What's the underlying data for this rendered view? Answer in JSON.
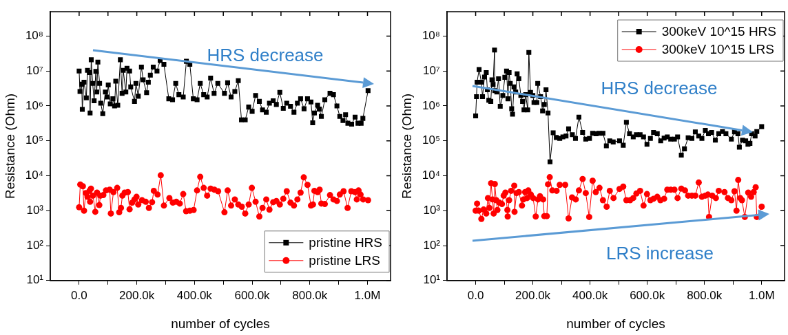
{
  "chart_data": [
    {
      "type": "line",
      "xlabel": "number of cycles",
      "ylabel": "Resistance (Ohm)",
      "xlim": [
        -100000,
        1080000
      ],
      "xticks": [
        {
          "value": 0,
          "label": "0.0"
        },
        {
          "value": 100000,
          "label": null
        },
        {
          "value": 200000,
          "label": "200.0k"
        },
        {
          "value": 300000,
          "label": null
        },
        {
          "value": 400000,
          "label": "400.0k"
        },
        {
          "value": 500000,
          "label": null
        },
        {
          "value": 600000,
          "label": "600.0k"
        },
        {
          "value": 700000,
          "label": null
        },
        {
          "value": 800000,
          "label": "800.0k"
        },
        {
          "value": 900000,
          "label": null
        },
        {
          "value": 1000000,
          "label": "1.0M"
        }
      ],
      "ylim": [
        10,
        500000000.0
      ],
      "yticks": [
        {
          "value": 10,
          "label": "10¹"
        },
        {
          "value": 100,
          "label": "10²"
        },
        {
          "value": 1000,
          "label": "10³"
        },
        {
          "value": 10000,
          "label": "10⁴"
        },
        {
          "value": 100000,
          "label": "10⁵"
        },
        {
          "value": 1000000,
          "label": "10⁶"
        },
        {
          "value": 10000000,
          "label": "10⁷"
        },
        {
          "value": 100000000,
          "label": "10⁸"
        }
      ],
      "log": "y",
      "grid": false,
      "legend": "bottom right",
      "line_style": "solid",
      "annotations": [
        "HRS decrease"
      ],
      "series": [
        {
          "name": "pristine HRS",
          "color": "#000000",
          "marker": "square",
          "x": [
            0,
            3000,
            9000,
            11000,
            17000,
            25000,
            29000,
            36000,
            38000,
            42000,
            47000,
            52000,
            58000,
            61000,
            65000,
            71000,
            75000,
            82000,
            91000,
            97000,
            101000,
            108000,
            117000,
            123000,
            127000,
            134000,
            143000,
            149000,
            153000,
            162000,
            166000,
            175000,
            179000,
            192000,
            197000,
            205000,
            216000,
            222000,
            234000,
            240000,
            247000,
            257000,
            270000,
            281000,
            294000,
            311000,
            324000,
            335000,
            346000,
            361000,
            372000,
            384000,
            396000,
            409000,
            420000,
            432000,
            444000,
            456000,
            468000,
            481000,
            504000,
            515000,
            527000,
            540000,
            552000,
            563000,
            576000,
            588000,
            600000,
            612000,
            625000,
            636000,
            649000,
            660000,
            673000,
            684000,
            696000,
            708000,
            720000,
            733000,
            745000,
            757000,
            768000,
            780000,
            792000,
            804000,
            810000,
            816000,
            827000,
            833000,
            840000,
            852000,
            870000,
            882000,
            894000,
            904000,
            915000,
            924000,
            932000,
            945000,
            957000,
            967000,
            978000,
            984000,
            1002000
          ],
          "values": [
            10000000.0,
            2600000.0,
            4200000.0,
            800000.0,
            4800000.0,
            1700000.0,
            10500000.0,
            9000000.0,
            630000.0,
            21000000.0,
            4400000.0,
            1400000.0,
            9800000.0,
            2500000.0,
            18000000.0,
            4400000.0,
            1200000.0,
            600000.0,
            2500000.0,
            1800000.0,
            4000000.0,
            1150000.0,
            1600000.0,
            1000000.0,
            5100000.0,
            1050000.0,
            21000000.0,
            2300000.0,
            10500000.0,
            2500000.0,
            12000000.0,
            10000000.0,
            3500000.0,
            1350000.0,
            4400000.0,
            1900000.0,
            13000000.0,
            5600000.0,
            2400000.0,
            4800000.0,
            7600000.0,
            13000000.0,
            10000000.0,
            20000000.0,
            15500000.0,
            1600000.0,
            1500000.0,
            4400000.0,
            2100000.0,
            1800000.0,
            19000000.0,
            15500000.0,
            1600000.0,
            1500000.0,
            4400000.0,
            2100000.0,
            1800000.0,
            6300000.0,
            2300000.0,
            4400000.0,
            2300000.0,
            4600000.0,
            1800000.0,
            2600000.0,
            5300000.0,
            400000.0,
            400000.0,
            930000.0,
            700000.0,
            2000000.0,
            1350000.0,
            770000.0,
            660000.0,
            1200000.0,
            1400000.0,
            1100000.0,
            2450000.0,
            850000.0,
            1200000.0,
            980000.0,
            660000.0,
            1200000.0,
            1600000.0,
            830000.0,
            1600000.0,
            1300000.0,
            330000.0,
            630000.0,
            1050000.0,
            810000.0,
            500000.0,
            1500000.0,
            2300000.0,
            2100000.0,
            1000000.0,
            500000.0,
            380000.0,
            560000.0,
            320000.0,
            300000.0,
            480000.0,
            320000.0,
            320000.0,
            440000.0,
            2750000.0
          ]
        },
        {
          "name": "pristine LRS",
          "color": "#ff0000",
          "marker": "circle",
          "x": [
            0,
            4000,
            13000,
            17000,
            23000,
            29000,
            36000,
            41000,
            38000,
            48000,
            56000,
            62000,
            70000,
            74000,
            84000,
            93000,
            106000,
            110000,
            119000,
            132000,
            139000,
            145000,
            150000,
            158000,
            169000,
            175000,
            184000,
            192000,
            199000,
            205000,
            218000,
            231000,
            242000,
            253000,
            259000,
            272000,
            283000,
            294000,
            313000,
            325000,
            337000,
            349000,
            361000,
            371000,
            384000,
            397000,
            409000,
            420000,
            432000,
            444000,
            456000,
            469000,
            482000,
            504000,
            515000,
            527000,
            540000,
            552000,
            564000,
            576000,
            588000,
            599000,
            612000,
            625000,
            636000,
            649000,
            660000,
            673000,
            684000,
            696000,
            708000,
            720000,
            733000,
            745000,
            757000,
            768000,
            779000,
            792000,
            804000,
            811000,
            816000,
            827000,
            834000,
            840000,
            852000,
            870000,
            882000,
            894000,
            904000,
            917000,
            931000,
            944000,
            957000,
            963000,
            969000,
            976000,
            985000,
            1002000
          ],
          "values": [
            1250,
            5600,
            5000,
            1000,
            3200,
            2500,
            3700,
            4300,
            1800,
            2700,
            930,
            3300,
            1450,
            2700,
            2800,
            3800,
            4000,
            830,
            3400,
            4500,
            900,
            1200,
            2700,
            3300,
            3400,
            1100,
            1700,
            2100,
            2500,
            1500,
            2000,
            1800,
            1200,
            1750,
            3700,
            2900,
            10300,
            1400,
            2300,
            1700,
            1800,
            1600,
            3000,
            970,
            1000,
            1050,
            3800,
            9300,
            4500,
            2700,
            4300,
            4000,
            3600,
            900,
            3800,
            1400,
            2100,
            1500,
            1300,
            830,
            1500,
            4500,
            1800,
            680,
            1200,
            2100,
            1070,
            1750,
            1900,
            1500,
            2200,
            3600,
            1700,
            1400,
            2100,
            3300,
            9000,
            5500,
            1400,
            1500,
            3700,
            3400,
            4000,
            1600,
            1550,
            2800,
            2100,
            1900,
            2900,
            3600,
            1200,
            3600,
            3400,
            2100,
            3800,
            2900,
            2100,
            2000
          ]
        }
      ]
    },
    {
      "type": "line",
      "xlabel": "number of cycles",
      "ylabel": "Resistance (Ohm)",
      "xlim": [
        -100000,
        1080000
      ],
      "xticks": [
        {
          "value": 0,
          "label": "0.0"
        },
        {
          "value": 100000,
          "label": null
        },
        {
          "value": 200000,
          "label": "200.0k"
        },
        {
          "value": 300000,
          "label": null
        },
        {
          "value": 400000,
          "label": "400.0k"
        },
        {
          "value": 500000,
          "label": null
        },
        {
          "value": 600000,
          "label": "600.0k"
        },
        {
          "value": 700000,
          "label": null
        },
        {
          "value": 800000,
          "label": "800.0k"
        },
        {
          "value": 900000,
          "label": null
        },
        {
          "value": 1000000,
          "label": "1.0M"
        }
      ],
      "ylim": [
        10,
        500000000.0
      ],
      "yticks": [
        {
          "value": 10,
          "label": "10¹"
        },
        {
          "value": 100,
          "label": "10²"
        },
        {
          "value": 1000,
          "label": "10³"
        },
        {
          "value": 10000,
          "label": "10⁴"
        },
        {
          "value": 100000,
          "label": "10⁵"
        },
        {
          "value": 1000000,
          "label": "10⁶"
        },
        {
          "value": 10000000,
          "label": "10⁷"
        },
        {
          "value": 100000000,
          "label": "10⁸"
        }
      ],
      "log": "y",
      "grid": false,
      "legend": "top right",
      "line_style": "solid",
      "annotations": [
        "HRS decrease",
        "LRS increase"
      ],
      "series": [
        {
          "name": "300keV 10^15 HRS",
          "color": "#000000",
          "marker": "square",
          "x": [
            0,
            3000,
            5000,
            12000,
            20000,
            24000,
            31000,
            37000,
            41000,
            46000,
            53000,
            57000,
            61000,
            66000,
            67000,
            74000,
            80000,
            86000,
            95000,
            102000,
            108000,
            113000,
            117000,
            121000,
            126000,
            129000,
            134000,
            140000,
            145000,
            151000,
            158000,
            164000,
            169000,
            175000,
            182000,
            186000,
            192000,
            200000,
            204000,
            214000,
            217000,
            227000,
            234000,
            240000,
            246000,
            253000,
            260000,
            271000,
            282000,
            294000,
            305000,
            316000,
            325000,
            338000,
            349000,
            361000,
            374000,
            385000,
            398000,
            409000,
            421000,
            432000,
            445000,
            457000,
            469000,
            481000,
            503000,
            516000,
            527000,
            538000,
            551000,
            562000,
            575000,
            587000,
            599000,
            611000,
            622000,
            635000,
            647000,
            659000,
            670000,
            682000,
            695000,
            706000,
            719000,
            730000,
            743000,
            756000,
            768000,
            780000,
            791000,
            803000,
            814000,
            825000,
            838000,
            850000,
            863000,
            875000,
            894000,
            905000,
            917000,
            922000,
            933000,
            944000,
            952000,
            959000,
            965000,
            977000,
            983000,
            1000000
          ],
          "values": [
            520000.0,
            1850000.0,
            4800000.0,
            11000000.0,
            4800000.0,
            1850000.0,
            6700000.0,
            9000000.0,
            2900000.0,
            1450000.0,
            1350000.0,
            5600000.0,
            4100000.0,
            40000000.0,
            2750000.0,
            2500000.0,
            6000000.0,
            980000.0,
            2000000.0,
            6600000.0,
            10000000.0,
            1600000.0,
            9000000.0,
            4400000.0,
            830000.0,
            580000.0,
            3500000.0,
            2500000.0,
            8300000.0,
            6000000.0,
            2000000.0,
            1350000.0,
            770000.0,
            2100000.0,
            770000.0,
            34000000.0,
            2450000.0,
            2000000.0,
            1250000.0,
            1250000.0,
            4400000.0,
            1850000.0,
            720000.0,
            1100000.0,
            2900000.0,
            630000.0,
            25000.0,
            170000.0,
            125000.0,
            117000.0,
            130000.0,
            137000.0,
            220000.0,
            150000.0,
            117000.0,
            480000.0,
            175000.0,
            112000.0,
            117000.0,
            165000.0,
            160000.0,
            165000.0,
            165000.0,
            72000.0,
            100000.0,
            93000.0,
            100000.0,
            75000.0,
            340000.0,
            160000.0,
            130000.0,
            150000.0,
            150000.0,
            130000.0,
            80000.0,
            117000.0,
            175000.0,
            160000.0,
            100000.0,
            120000.0,
            130000.0,
            112000.0,
            112000.0,
            130000.0,
            39000.0,
            59000.0,
            123000.0,
            117000.0,
            180000.0,
            137000.0,
            117000.0,
            200000.0,
            160000.0,
            175000.0,
            105000.0,
            160000.0,
            185000.0,
            160000.0,
            112000.0,
            180000.0,
            160000.0,
            66000.0,
            105000.0,
            100000.0,
            80000.0,
            85000.0,
            160000.0,
            137000.0,
            185000.0,
            255000.0
          ]
        },
        {
          "name": "300keV 10^15 LRS",
          "color": "#ff0000",
          "marker": "circle",
          "x": [
            0,
            5000,
            11000,
            20000,
            28000,
            37000,
            43000,
            48000,
            54000,
            59000,
            63000,
            67000,
            72000,
            76000,
            83000,
            92000,
            98000,
            104000,
            111000,
            112000,
            117000,
            124000,
            135000,
            136000,
            143000,
            151000,
            162000,
            167000,
            173000,
            180000,
            184000,
            193000,
            201000,
            210000,
            218000,
            225000,
            236000,
            240000,
            249000,
            253000,
            259000,
            268000,
            283000,
            294000,
            313000,
            325000,
            337000,
            350000,
            361000,
            374000,
            385000,
            397000,
            409000,
            420000,
            433000,
            445000,
            458000,
            469000,
            482000,
            503000,
            516000,
            527000,
            540000,
            551000,
            562000,
            575000,
            587000,
            599000,
            611000,
            622000,
            635000,
            646000,
            659000,
            670000,
            682000,
            695000,
            706000,
            719000,
            732000,
            743000,
            756000,
            768000,
            780000,
            791000,
            803000,
            812000,
            816000,
            827000,
            840000,
            850000,
            870000,
            882000,
            894000,
            905000,
            912000,
            918000,
            925000,
            931000,
            941000,
            953000,
            963000,
            972000,
            979000,
            983000,
            1000000
          ],
          "values": [
            1000,
            1600,
            1000,
            580,
            1080,
            830,
            2300,
            1200,
            6100,
            2100,
            830,
            5800,
            2000,
            1050,
            1700,
            1550,
            2700,
            3300,
            1050,
            680,
            2000,
            3700,
            5200,
            930,
            3200,
            3400,
            1400,
            2100,
            3400,
            2300,
            3800,
            2900,
            2300,
            680,
            2100,
            2600,
            2100,
            700,
            700,
            5700,
            9100,
            3800,
            3700,
            5500,
            5500,
            600,
            2400,
            2100,
            3800,
            8100,
            3200,
            660,
            7200,
            3400,
            4500,
            2000,
            1300,
            3700,
            2300,
            4200,
            4900,
            2000,
            2000,
            2300,
            3100,
            3700,
            1400,
            3000,
            2000,
            2200,
            2500,
            2000,
            2200,
            4000,
            4000,
            4000,
            2300,
            4300,
            3800,
            2700,
            2700,
            2700,
            6400,
            2500,
            2700,
            2900,
            660,
            2700,
            2300,
            3700,
            3400,
            2300,
            2000,
            3600,
            1000,
            7600,
            2300,
            2000,
            660,
            3300,
            2500,
            3400,
            4700,
            660,
            1300
          ]
        }
      ]
    }
  ]
}
